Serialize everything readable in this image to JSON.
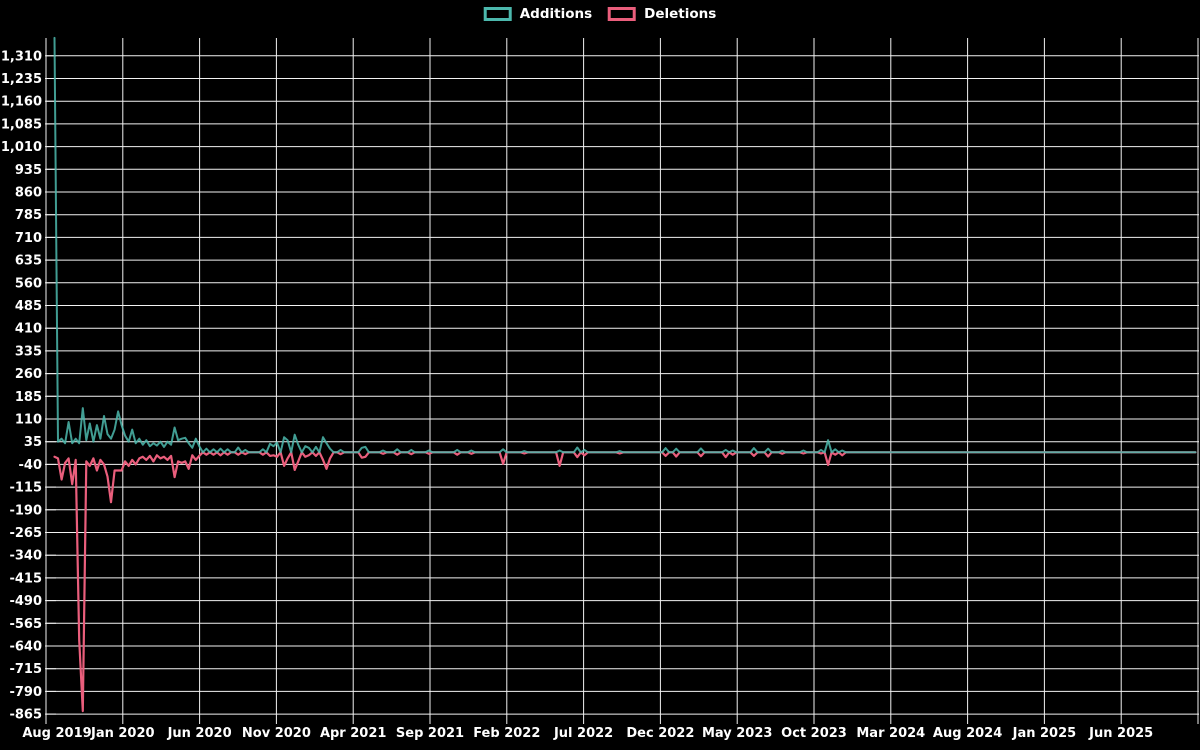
{
  "chart_data": {
    "type": "line",
    "title": "",
    "xlabel": "",
    "ylabel": "",
    "background": "#000000",
    "gridline_color": "#f2f2f2",
    "text_color": "#ffffff",
    "legend_position": "top-center",
    "x_axis": {
      "tick_labels": [
        "Aug 2019",
        "Jan 2020",
        "Jun 2020",
        "Nov 2020",
        "Apr 2021",
        "Sep 2021",
        "Feb 2022",
        "Jul 2022",
        "Dec 2022",
        "May 2023",
        "Oct 2023",
        "Mar 2024",
        "Aug 2024",
        "Jan 2025",
        "Jun 2025"
      ]
    },
    "y_axis": {
      "tick_step": 75,
      "ticks": [
        1310,
        1235,
        1160,
        1085,
        1010,
        935,
        860,
        785,
        710,
        635,
        560,
        485,
        410,
        335,
        260,
        185,
        110,
        35,
        -40,
        -115,
        -190,
        -265,
        -340,
        -415,
        -490,
        -565,
        -640,
        -715,
        -790,
        -865
      ]
    },
    "weeks_total": 324,
    "series": [
      {
        "name": "Additions",
        "color": "#4cb8ad",
        "points": [
          [
            0,
            1369
          ],
          [
            1,
            35
          ],
          [
            2,
            45
          ],
          [
            3,
            30
          ],
          [
            4,
            100
          ],
          [
            5,
            30
          ],
          [
            6,
            45
          ],
          [
            7,
            30
          ],
          [
            8,
            146
          ],
          [
            9,
            40
          ],
          [
            10,
            95
          ],
          [
            11,
            35
          ],
          [
            12,
            90
          ],
          [
            13,
            45
          ],
          [
            14,
            120
          ],
          [
            15,
            60
          ],
          [
            16,
            45
          ],
          [
            17,
            75
          ],
          [
            18,
            135
          ],
          [
            19,
            90
          ],
          [
            20,
            55
          ],
          [
            21,
            35
          ],
          [
            22,
            75
          ],
          [
            23,
            30
          ],
          [
            24,
            45
          ],
          [
            25,
            25
          ],
          [
            26,
            40
          ],
          [
            27,
            20
          ],
          [
            28,
            30
          ],
          [
            29,
            22
          ],
          [
            30,
            35
          ],
          [
            31,
            18
          ],
          [
            32,
            35
          ],
          [
            33,
            25
          ],
          [
            34,
            82
          ],
          [
            35,
            40
          ],
          [
            36,
            45
          ],
          [
            37,
            48
          ],
          [
            38,
            30
          ],
          [
            39,
            15
          ],
          [
            40,
            45
          ],
          [
            41,
            20
          ],
          [
            43,
            12
          ],
          [
            45,
            10
          ],
          [
            47,
            12
          ],
          [
            49,
            10
          ],
          [
            52,
            16
          ],
          [
            54,
            8
          ],
          [
            59,
            10
          ],
          [
            61,
            28
          ],
          [
            62,
            20
          ],
          [
            63,
            32
          ],
          [
            65,
            50
          ],
          [
            66,
            40
          ],
          [
            68,
            58
          ],
          [
            69,
            25
          ],
          [
            71,
            20
          ],
          [
            72,
            15
          ],
          [
            74,
            18
          ],
          [
            76,
            50
          ],
          [
            77,
            30
          ],
          [
            78,
            12
          ],
          [
            81,
            8
          ],
          [
            87,
            15
          ],
          [
            88,
            18
          ],
          [
            93,
            6
          ],
          [
            97,
            10
          ],
          [
            101,
            8
          ],
          [
            106,
            6
          ],
          [
            114,
            8
          ],
          [
            118,
            6
          ],
          [
            127,
            10
          ],
          [
            133,
            4
          ],
          [
            143,
            6
          ],
          [
            148,
            16
          ],
          [
            150,
            8
          ],
          [
            160,
            4
          ],
          [
            173,
            14
          ],
          [
            176,
            12
          ],
          [
            183,
            13
          ],
          [
            190,
            8
          ],
          [
            192,
            6
          ],
          [
            198,
            14
          ],
          [
            202,
            12
          ],
          [
            206,
            5
          ],
          [
            212,
            6
          ],
          [
            217,
            8
          ],
          [
            219,
            40
          ],
          [
            221,
            10
          ],
          [
            223,
            6
          ]
        ]
      },
      {
        "name": "Deletions",
        "color": "#ea5e7c",
        "points": [
          [
            0,
            -15
          ],
          [
            1,
            -20
          ],
          [
            2,
            -90
          ],
          [
            3,
            -35
          ],
          [
            4,
            -20
          ],
          [
            5,
            -105
          ],
          [
            6,
            -25
          ],
          [
            7,
            -620
          ],
          [
            8,
            -855
          ],
          [
            9,
            -30
          ],
          [
            10,
            -45
          ],
          [
            11,
            -20
          ],
          [
            12,
            -60
          ],
          [
            13,
            -25
          ],
          [
            14,
            -40
          ],
          [
            15,
            -80
          ],
          [
            16,
            -165
          ],
          [
            17,
            -60
          ],
          [
            18,
            -60
          ],
          [
            19,
            -60
          ],
          [
            20,
            -30
          ],
          [
            21,
            -45
          ],
          [
            22,
            -25
          ],
          [
            23,
            -40
          ],
          [
            24,
            -20
          ],
          [
            25,
            -15
          ],
          [
            26,
            -25
          ],
          [
            27,
            -12
          ],
          [
            28,
            -30
          ],
          [
            29,
            -10
          ],
          [
            30,
            -20
          ],
          [
            31,
            -15
          ],
          [
            32,
            -25
          ],
          [
            33,
            -12
          ],
          [
            34,
            -82
          ],
          [
            35,
            -30
          ],
          [
            36,
            -35
          ],
          [
            37,
            -30
          ],
          [
            38,
            -55
          ],
          [
            39,
            -10
          ],
          [
            40,
            -25
          ],
          [
            41,
            -12
          ],
          [
            43,
            -8
          ],
          [
            45,
            -8
          ],
          [
            47,
            -10
          ],
          [
            49,
            -8
          ],
          [
            52,
            -8
          ],
          [
            54,
            -6
          ],
          [
            59,
            -8
          ],
          [
            61,
            -12
          ],
          [
            62,
            -10
          ],
          [
            63,
            -15
          ],
          [
            65,
            -45
          ],
          [
            66,
            -20
          ],
          [
            68,
            -58
          ],
          [
            69,
            -30
          ],
          [
            71,
            -15
          ],
          [
            72,
            -10
          ],
          [
            74,
            -12
          ],
          [
            76,
            -25
          ],
          [
            77,
            -55
          ],
          [
            78,
            -20
          ],
          [
            81,
            -6
          ],
          [
            87,
            -18
          ],
          [
            88,
            -15
          ],
          [
            93,
            -5
          ],
          [
            97,
            -8
          ],
          [
            101,
            -6
          ],
          [
            106,
            -5
          ],
          [
            114,
            -8
          ],
          [
            118,
            -5
          ],
          [
            127,
            -38
          ],
          [
            133,
            -4
          ],
          [
            143,
            -45
          ],
          [
            148,
            -16
          ],
          [
            150,
            -10
          ],
          [
            160,
            -4
          ],
          [
            173,
            -12
          ],
          [
            176,
            -14
          ],
          [
            183,
            -13
          ],
          [
            190,
            -16
          ],
          [
            192,
            -8
          ],
          [
            198,
            -12
          ],
          [
            202,
            -14
          ],
          [
            206,
            -5
          ],
          [
            212,
            -4
          ],
          [
            217,
            -4
          ],
          [
            219,
            -42
          ],
          [
            221,
            -8
          ],
          [
            223,
            -10
          ]
        ]
      }
    ]
  }
}
